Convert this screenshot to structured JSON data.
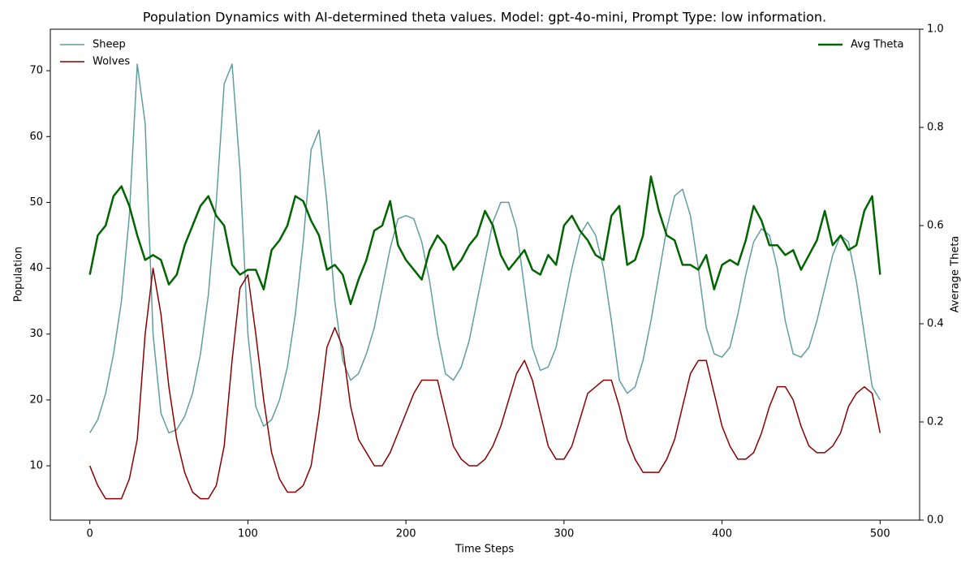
{
  "chart_data": {
    "type": "line",
    "title": "Population Dynamics with AI-determined theta values. Model: gpt-4o-mini, Prompt Type: low information.",
    "xlabel": "Time Steps",
    "ylabel": "Population",
    "y2label": "Average Theta",
    "x": [
      0,
      5,
      10,
      15,
      20,
      25,
      30,
      35,
      40,
      45,
      50,
      55,
      60,
      65,
      70,
      75,
      80,
      85,
      90,
      95,
      100,
      105,
      110,
      115,
      120,
      125,
      130,
      135,
      140,
      145,
      150,
      155,
      160,
      165,
      170,
      175,
      180,
      185,
      190,
      195,
      200,
      205,
      210,
      215,
      220,
      225,
      230,
      235,
      240,
      245,
      250,
      255,
      260,
      265,
      270,
      275,
      280,
      285,
      290,
      295,
      300,
      305,
      310,
      315,
      320,
      325,
      330,
      335,
      340,
      345,
      350,
      355,
      360,
      365,
      370,
      375,
      380,
      385,
      390,
      395,
      400,
      405,
      410,
      415,
      420,
      425,
      430,
      435,
      440,
      445,
      450,
      455,
      460,
      465,
      470,
      475,
      480,
      485,
      490,
      495,
      500
    ],
    "series": [
      {
        "name": "Sheep",
        "color": "#5f9ea0",
        "axis": "y",
        "width": 1.5,
        "values": [
          15,
          17,
          21,
          27,
          35,
          48,
          71,
          62,
          30,
          18,
          15,
          15.5,
          17.5,
          21,
          27,
          36,
          50,
          68,
          71,
          55,
          30,
          19,
          16,
          17,
          20,
          25,
          33,
          44,
          58,
          61,
          50,
          35,
          26,
          23,
          24,
          27,
          31,
          37,
          43,
          47.5,
          48,
          47.5,
          44,
          38,
          30,
          24,
          23,
          25,
          29,
          35,
          41,
          47,
          50,
          50,
          46,
          37,
          28,
          24.5,
          25,
          28,
          34,
          40,
          45,
          47,
          45,
          40,
          32,
          23,
          21,
          22,
          26,
          32,
          39,
          46,
          51,
          52,
          48,
          40,
          31,
          27,
          26.5,
          28,
          33,
          39,
          44,
          46,
          45,
          40,
          32,
          27,
          26.5,
          28,
          32,
          37,
          42,
          45,
          44,
          38,
          30,
          22,
          20
        ]
      },
      {
        "name": "Wolves",
        "color": "#8b0000",
        "axis": "y",
        "width": 1.5,
        "values": [
          10,
          7,
          5,
          5,
          5,
          8,
          14,
          30,
          40,
          33,
          22,
          14,
          9,
          6,
          5,
          5,
          7,
          13,
          26,
          37,
          39,
          30,
          20,
          12,
          8,
          6,
          6,
          7,
          10,
          18,
          28,
          31,
          28,
          19,
          14,
          12,
          10,
          10,
          12,
          15,
          18,
          21,
          23,
          23,
          23,
          18,
          13,
          11,
          10,
          10,
          11,
          13,
          16,
          20,
          24,
          26,
          23,
          18,
          13,
          11,
          11,
          13,
          17,
          21,
          22,
          23,
          23,
          19,
          14,
          11,
          9,
          9,
          9,
          11,
          14,
          19,
          24,
          26,
          26,
          21,
          16,
          13,
          11,
          11,
          12,
          15,
          19,
          22,
          22,
          20,
          16,
          13,
          12,
          12,
          13,
          15,
          19,
          21,
          22,
          21,
          15
        ]
      },
      {
        "name": "Avg Theta",
        "color": "#006400",
        "axis": "y2",
        "width": 2.5,
        "values": [
          0.5,
          0.58,
          0.6,
          0.66,
          0.68,
          0.64,
          0.58,
          0.53,
          0.54,
          0.53,
          0.48,
          0.5,
          0.56,
          0.6,
          0.64,
          0.66,
          0.62,
          0.6,
          0.52,
          0.5,
          0.51,
          0.51,
          0.47,
          0.55,
          0.57,
          0.6,
          0.66,
          0.65,
          0.61,
          0.58,
          0.51,
          0.52,
          0.5,
          0.44,
          0.49,
          0.53,
          0.59,
          0.6,
          0.65,
          0.56,
          0.53,
          0.51,
          0.49,
          0.55,
          0.58,
          0.56,
          0.51,
          0.53,
          0.56,
          0.58,
          0.63,
          0.6,
          0.54,
          0.51,
          0.53,
          0.55,
          0.51,
          0.5,
          0.54,
          0.52,
          0.6,
          0.62,
          0.59,
          0.57,
          0.54,
          0.53,
          0.62,
          0.64,
          0.52,
          0.53,
          0.58,
          0.7,
          0.63,
          0.58,
          0.57,
          0.52,
          0.52,
          0.51,
          0.54,
          0.47,
          0.52,
          0.53,
          0.52,
          0.57,
          0.64,
          0.61,
          0.56,
          0.56,
          0.54,
          0.55,
          0.51,
          0.54,
          0.57,
          0.63,
          0.56,
          0.58,
          0.55,
          0.56,
          0.63,
          0.66,
          0.5
        ]
      }
    ],
    "xlim": [
      -25,
      525
    ],
    "ylim": [
      1.75,
      76.3
    ],
    "y2lim": [
      0,
      1
    ],
    "xticks": [
      0,
      100,
      200,
      300,
      400,
      500
    ],
    "yticks": [
      10,
      20,
      30,
      40,
      50,
      60,
      70
    ],
    "y2ticks": [
      {
        "value": 0,
        "label": "0.0"
      },
      0.2,
      0.4,
      0.6,
      0.8,
      {
        "value": 1,
        "label": "1.0"
      }
    ],
    "legend": {
      "y": "upper left",
      "y2": "upper right"
    }
  }
}
